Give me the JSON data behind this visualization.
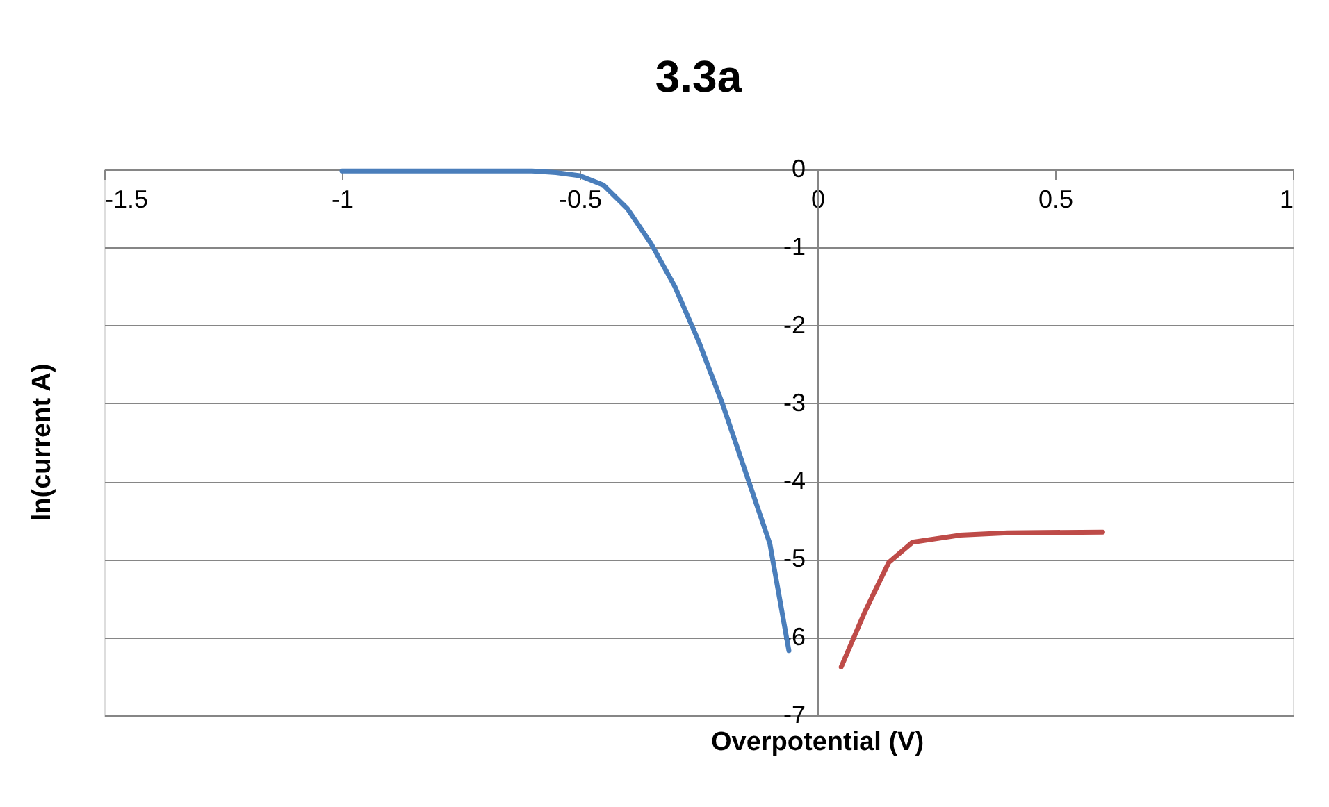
{
  "chart_data": {
    "type": "line",
    "title": "3.3a",
    "xlabel": "Overpotential (V)",
    "ylabel": "ln(current A)",
    "xlim": [
      -1.5,
      1
    ],
    "xticks": [
      -1.5,
      -1,
      -0.5,
      0,
      0.5,
      1
    ],
    "ylim": [
      -7,
      0
    ],
    "yticks": [
      -7,
      -6,
      -5,
      -4,
      -3,
      -2,
      -1,
      0
    ],
    "grid": "y",
    "marker": "none",
    "line_style": "solid",
    "series": [
      {
        "color": "#4a7ebb",
        "x": [
          -1,
          -0.8,
          -0.6,
          -0.55,
          -0.5,
          -0.45,
          -0.4,
          -0.35,
          -0.3,
          -0.25,
          -0.2,
          -0.15,
          -0.1,
          -0.06
        ],
        "values": [
          -0.02,
          -0.02,
          -0.02,
          -0.04,
          -0.08,
          -0.2,
          -0.5,
          -0.95,
          -1.5,
          -2.2,
          -3,
          -3.9,
          -4.8,
          -6.17
        ]
      },
      {
        "color": "#be4b48",
        "x": [
          0.05,
          0.1,
          0.15,
          0.2,
          0.3,
          0.4,
          0.6
        ],
        "values": [
          -6.38,
          -5.67,
          -5.04,
          -4.78,
          -4.69,
          -4.66,
          -4.65
        ]
      }
    ]
  }
}
